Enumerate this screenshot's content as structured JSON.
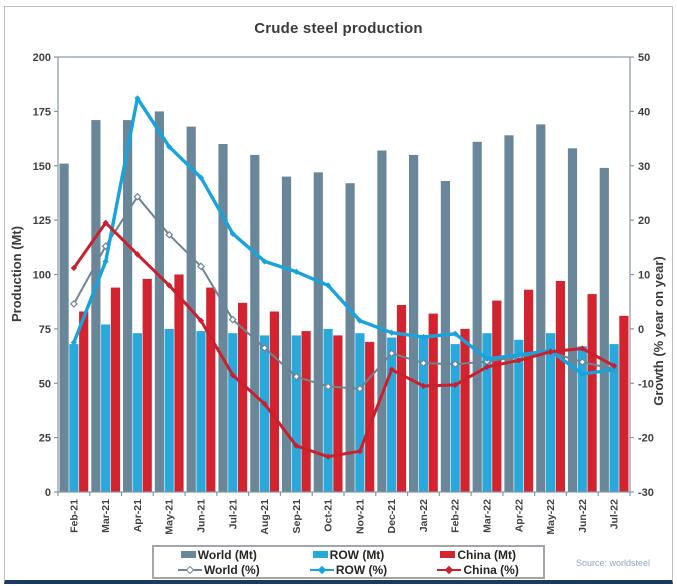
{
  "title": "Crude steel production",
  "source_note": "Source: worldsteel",
  "frame": {
    "border_color": "#b9bfc5",
    "bottom_bar_color": "#1c3a60"
  },
  "chart_data": {
    "type": "bar+line combo",
    "title": "Crude steel production",
    "categories": [
      "Feb-21",
      "Mar-21",
      "Apr-21",
      "May-21",
      "Jun-21",
      "Jul-21",
      "Aug-21",
      "Sep-21",
      "Oct-21",
      "Nov-21",
      "Dec-21",
      "Jan-22",
      "Feb-22",
      "Mar-22",
      "Apr-22",
      "May-22",
      "Jun-22",
      "Jul-22"
    ],
    "left_axis": {
      "label": "Production (Mt)",
      "min": 0,
      "max": 200,
      "step": 25
    },
    "right_axis": {
      "label": "Growth (% year on year)",
      "min": -30,
      "max": 50,
      "step": 10
    },
    "grid": "off",
    "legend_position": "bottom",
    "bar_series": [
      {
        "name": "World (Mt)",
        "color": "#6a8799",
        "values": [
          151,
          171,
          171,
          175,
          168,
          160,
          155,
          145,
          147,
          142,
          157,
          155,
          143,
          161,
          164,
          169,
          158,
          149
        ]
      },
      {
        "name": "ROW (Mt)",
        "color": "#29a8dc",
        "values": [
          68,
          77,
          73,
          75,
          74,
          73,
          72,
          72,
          75,
          73,
          71,
          72,
          68,
          73,
          70,
          73,
          67,
          68
        ]
      },
      {
        "name": "China (Mt)",
        "color": "#d2232f",
        "values": [
          83,
          94,
          98,
          100,
          94,
          87,
          83,
          74,
          72,
          69,
          86,
          82,
          75,
          88,
          93,
          97,
          91,
          81
        ]
      }
    ],
    "line_series": [
      {
        "name": "World (%)",
        "color": "#6f8494",
        "marker": "open-diamond",
        "width": 2,
        "values": [
          4.6,
          15.2,
          24.3,
          17.3,
          11.5,
          1.7,
          -3.5,
          -8.8,
          -10.6,
          -11,
          -4.5,
          -6.3,
          -6.5,
          -6,
          -5.1,
          -4.3,
          -6.1,
          -7.4
        ]
      },
      {
        "name": "ROW (%)",
        "color": "#18a3dc",
        "marker": "solid-diamond",
        "width": 3.4,
        "values": [
          -2.5,
          12.4,
          42.4,
          33.5,
          27.8,
          17.5,
          12.4,
          10.5,
          8,
          1.5,
          -0.7,
          -1.5,
          -0.9,
          -5.5,
          -4.8,
          -4,
          -8.3,
          -7.5
        ]
      },
      {
        "name": "China (%)",
        "color": "#c9202e",
        "marker": "solid-diamond",
        "width": 3,
        "values": [
          11.2,
          19.5,
          13.7,
          8,
          1.5,
          -8.5,
          -13.8,
          -21.5,
          -23.5,
          -22.5,
          -7.5,
          -10.5,
          -10.3,
          -7,
          -5.8,
          -4.2,
          -3.6,
          -6.8
        ]
      }
    ],
    "left_ticks": [
      "0",
      "25",
      "50",
      "75",
      "100",
      "125",
      "150",
      "175",
      "200"
    ],
    "right_ticks": [
      "-30",
      "-20",
      "-10",
      "0",
      "10",
      "20",
      "30",
      "40",
      "50"
    ]
  }
}
